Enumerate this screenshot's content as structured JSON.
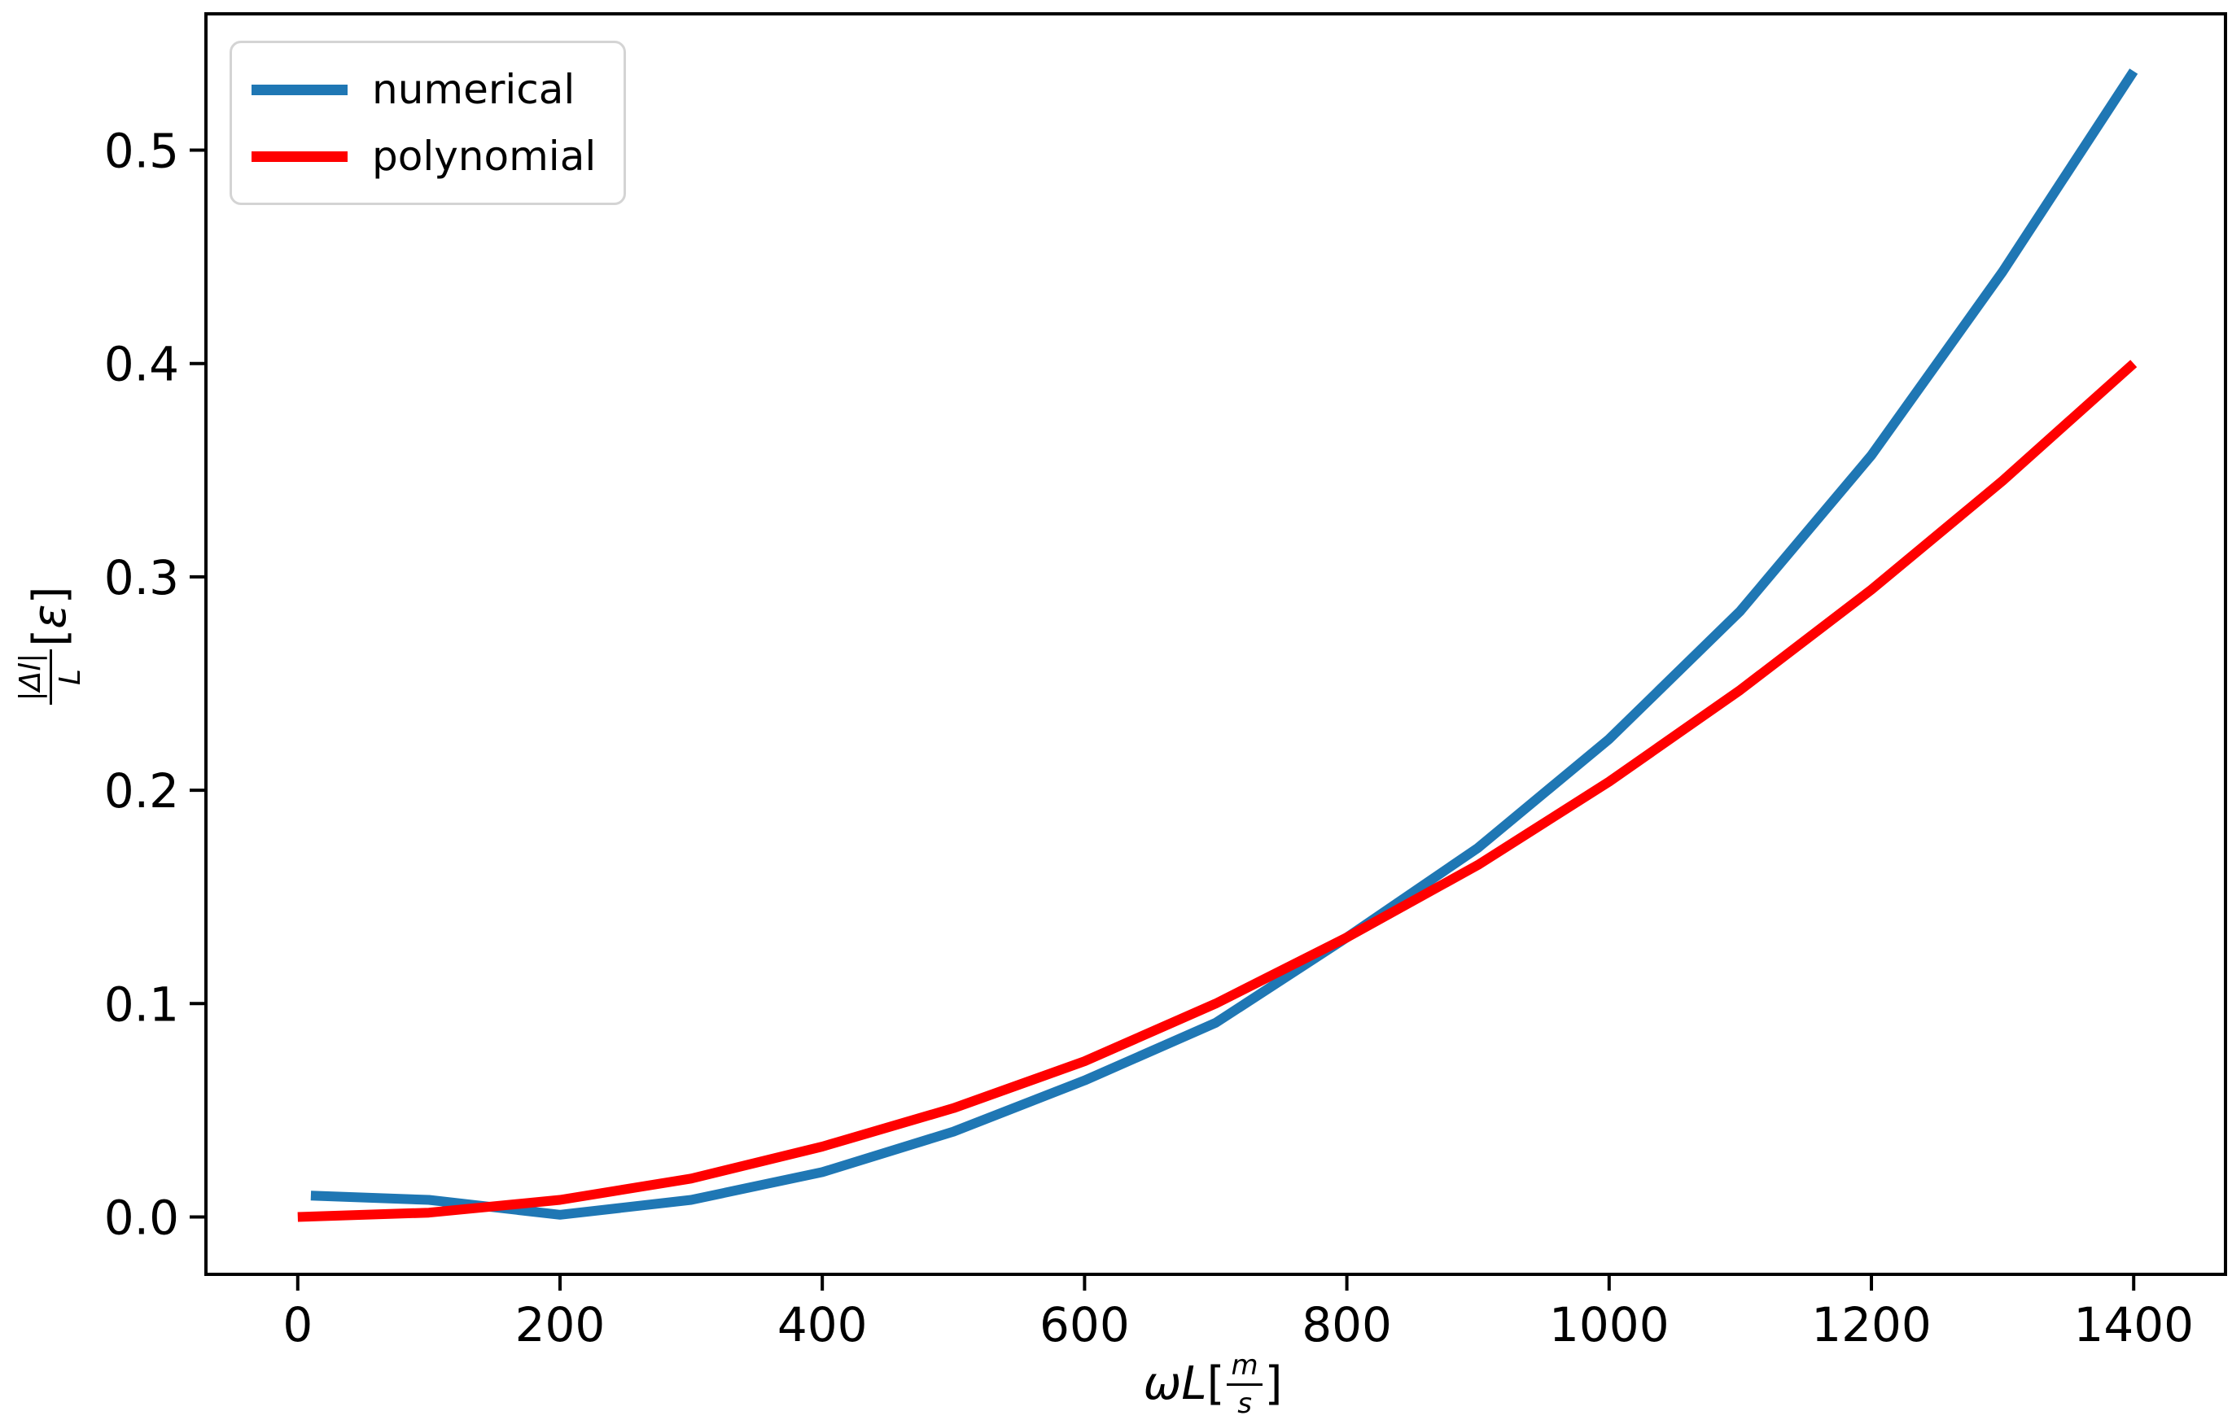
{
  "figure": {
    "background": "#ffffff",
    "axis_color": "#000000",
    "legend": {
      "items": [
        {
          "label": "numerical",
          "color": "#1f77b4"
        },
        {
          "label": "polynomial",
          "color": "#ff0000"
        }
      ]
    },
    "xlabel_parts": {
      "pre_italic": "ωL",
      "open_bracket": "[",
      "frac_num": "m",
      "frac_den": "s",
      "close_bracket": "]"
    },
    "ylabel_parts": {
      "frac_num": "|Δl|",
      "frac_den": "L",
      "open_bracket": "[",
      "suffix_italic": "ε",
      "close_bracket": "]"
    }
  },
  "chart_data": {
    "type": "line",
    "title": "",
    "xlabel": "ωL[m/s]",
    "ylabel": "|Δl|/L [ε]",
    "grid": false,
    "legend_position": "upper left",
    "xlim": [
      -70,
      1470
    ],
    "ylim": [
      -0.0269,
      0.5639
    ],
    "x_ticks": [
      0,
      200,
      400,
      600,
      800,
      1000,
      1200,
      1400
    ],
    "x_tick_labels": [
      "0",
      "200",
      "400",
      "600",
      "800",
      "1000",
      "1200",
      "1400"
    ],
    "y_ticks": [
      0.0,
      0.1,
      0.2,
      0.3,
      0.4,
      0.5
    ],
    "y_tick_labels": [
      "0.0",
      "0.1",
      "0.2",
      "0.3",
      "0.4",
      "0.5"
    ],
    "series": [
      {
        "name": "numerical",
        "color": "#1f77b4",
        "line_width": 12,
        "x": [
          10,
          100,
          200,
          300,
          400,
          500,
          600,
          700,
          800,
          900,
          1000,
          1100,
          1200,
          1300,
          1400
        ],
        "y": [
          0.01,
          0.008,
          0.001,
          0.008,
          0.021,
          0.04,
          0.064,
          0.091,
          0.131,
          0.173,
          0.224,
          0.284,
          0.357,
          0.443,
          0.537
        ]
      },
      {
        "name": "polynomial",
        "color": "#ff0000",
        "line_width": 12,
        "x": [
          0,
          100,
          200,
          300,
          400,
          500,
          600,
          700,
          800,
          900,
          1000,
          1100,
          1200,
          1300,
          1400
        ],
        "y": [
          0.0,
          0.002,
          0.008,
          0.018,
          0.033,
          0.051,
          0.073,
          0.1,
          0.131,
          0.165,
          0.204,
          0.247,
          0.294,
          0.345,
          0.4
        ]
      }
    ]
  }
}
